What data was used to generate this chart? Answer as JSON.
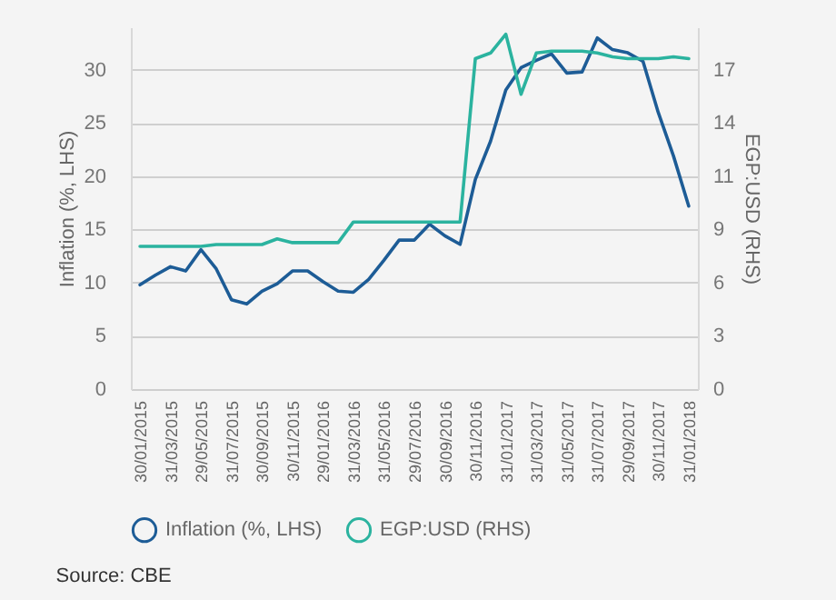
{
  "chart_data": {
    "type": "line",
    "ylabel": "Inflation (%, LHS)",
    "y2label": "EGP:USD (RHS)",
    "categories": [
      "30/01/2015",
      null,
      "31/03/2015",
      null,
      "29/05/2015",
      null,
      "31/07/2015",
      null,
      "30/09/2015",
      null,
      "30/11/2015",
      null,
      "29/01/2016",
      null,
      "31/03/2016",
      null,
      "31/05/2016",
      null,
      "29/07/2016",
      null,
      "30/09/2016",
      null,
      "30/11/2016",
      null,
      "31/01/2017",
      null,
      "31/03/2017",
      null,
      "31/05/2017",
      null,
      "31/07/2017",
      null,
      "29/09/2017",
      null,
      "30/11/2017",
      null,
      "31/01/2018"
    ],
    "series": [
      {
        "name": "Inflation (%, LHS)",
        "color": "#1d5c96",
        "values": [
          9.8,
          10.7,
          11.5,
          11.1,
          13.1,
          11.3,
          8.4,
          8.0,
          9.2,
          9.9,
          11.1,
          11.1,
          10.1,
          9.2,
          9.1,
          10.3,
          12.1,
          14.0,
          14.0,
          15.5,
          14.4,
          13.6,
          19.7,
          23.3,
          28.1,
          30.2,
          30.9,
          31.5,
          29.7,
          29.8,
          33.0,
          31.9,
          31.6,
          30.8,
          26.0,
          21.9,
          17.2
        ]
      },
      {
        "name": "EGP:USD (RHS)",
        "color": "#2bb39f",
        "axis": "y2",
        "values": [
          7.6,
          7.6,
          7.6,
          7.6,
          7.6,
          7.7,
          7.7,
          7.7,
          7.7,
          8.0,
          7.8,
          7.8,
          7.8,
          7.8,
          8.9,
          8.9,
          8.9,
          8.9,
          8.9,
          8.9,
          8.9,
          8.9,
          17.6,
          17.9,
          18.9,
          15.7,
          17.9,
          18.0,
          18.0,
          18.0,
          17.9,
          17.7,
          17.6,
          17.6,
          17.6,
          17.7,
          17.6
        ]
      }
    ],
    "ylim": [
      0,
      34
    ],
    "yticks": [
      0,
      5,
      10,
      15,
      20,
      25,
      30
    ],
    "y2lim": [
      0,
      19.27
    ],
    "y2ticks": [
      0,
      {
        "value": 2.833,
        "label": "3"
      },
      {
        "value": 5.667,
        "label": "6"
      },
      {
        "value": 8.5,
        "label": "9"
      },
      {
        "value": 11.333,
        "label": "11"
      },
      {
        "value": 14.167,
        "label": "14"
      },
      17
    ],
    "grid": "y",
    "legend": "bottom",
    "marker": "none",
    "line_style": "solid",
    "annotations": [
      "Source: CBE"
    ]
  }
}
